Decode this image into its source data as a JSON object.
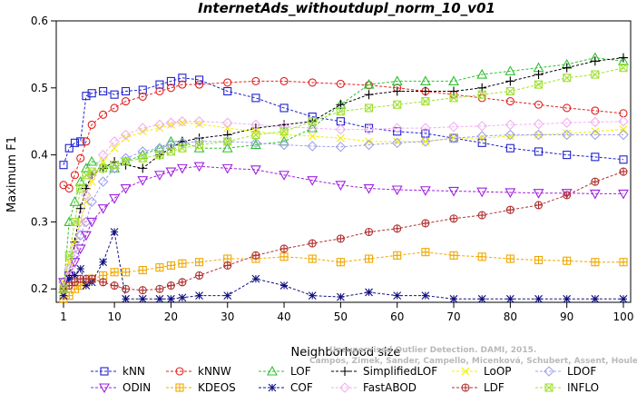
{
  "chart_data": {
    "type": "line",
    "title": "InternetAds_withoutdupl_norm_10_v01",
    "xlabel": "Neighborhood size",
    "ylabel": "Maximum F1",
    "xlim": [
      1,
      100
    ],
    "ylim": [
      0.18,
      0.6
    ],
    "xticks": [
      1,
      10,
      20,
      30,
      40,
      50,
      60,
      70,
      80,
      90,
      100
    ],
    "yticks": [
      0.2,
      0.3,
      0.4,
      0.5,
      0.6
    ],
    "grid": false,
    "legend_position": "bottom",
    "x": [
      1,
      2,
      3,
      4,
      5,
      6,
      8,
      10,
      12,
      15,
      18,
      20,
      22,
      25,
      30,
      35,
      40,
      45,
      50,
      55,
      60,
      65,
      70,
      75,
      80,
      85,
      90,
      95,
      100
    ],
    "series": [
      {
        "name": "kNN",
        "color": "#2020d0",
        "marker": "square",
        "values": [
          0.385,
          0.41,
          0.418,
          0.42,
          0.488,
          0.492,
          0.495,
          0.49,
          0.495,
          0.497,
          0.505,
          0.51,
          0.515,
          0.512,
          0.495,
          0.485,
          0.47,
          0.457,
          0.45,
          0.44,
          0.435,
          0.432,
          0.425,
          0.418,
          0.41,
          0.405,
          0.4,
          0.397,
          0.393
        ]
      },
      {
        "name": "kNNW",
        "color": "#e02020",
        "marker": "circle",
        "values": [
          0.355,
          0.35,
          0.37,
          0.395,
          0.42,
          0.445,
          0.46,
          0.47,
          0.48,
          0.487,
          0.495,
          0.5,
          0.505,
          0.505,
          0.508,
          0.51,
          0.51,
          0.508,
          0.506,
          0.504,
          0.5,
          0.495,
          0.49,
          0.485,
          0.48,
          0.475,
          0.47,
          0.466,
          0.462
        ]
      },
      {
        "name": "LOF",
        "color": "#30c030",
        "marker": "triangle",
        "values": [
          0.2,
          0.3,
          0.33,
          0.36,
          0.38,
          0.39,
          0.385,
          0.38,
          0.39,
          0.4,
          0.41,
          0.42,
          0.42,
          0.41,
          0.41,
          0.415,
          0.42,
          0.44,
          0.475,
          0.505,
          0.51,
          0.51,
          0.51,
          0.52,
          0.525,
          0.53,
          0.535,
          0.545,
          0.54
        ]
      },
      {
        "name": "SimplifiedLOF",
        "color": "#000000",
        "marker": "plus",
        "values": [
          0.2,
          0.22,
          0.27,
          0.32,
          0.35,
          0.37,
          0.38,
          0.39,
          0.385,
          0.38,
          0.4,
          0.41,
          0.42,
          0.425,
          0.43,
          0.44,
          0.445,
          0.45,
          0.475,
          0.49,
          0.495,
          0.495,
          0.495,
          0.5,
          0.51,
          0.52,
          0.53,
          0.54,
          0.545
        ]
      },
      {
        "name": "LoOP",
        "color": "#f0f000",
        "marker": "x",
        "values": [
          0.21,
          0.24,
          0.27,
          0.3,
          0.33,
          0.36,
          0.39,
          0.41,
          0.425,
          0.435,
          0.44,
          0.445,
          0.448,
          0.446,
          0.44,
          0.435,
          0.43,
          0.428,
          0.425,
          0.42,
          0.42,
          0.42,
          0.425,
          0.425,
          0.428,
          0.43,
          0.432,
          0.435,
          0.438
        ]
      },
      {
        "name": "LDOF",
        "color": "#a0a0f0",
        "marker": "diamond",
        "values": [
          0.21,
          0.23,
          0.25,
          0.28,
          0.3,
          0.33,
          0.36,
          0.38,
          0.395,
          0.405,
          0.41,
          0.415,
          0.418,
          0.42,
          0.42,
          0.418,
          0.415,
          0.413,
          0.412,
          0.415,
          0.418,
          0.42,
          0.425,
          0.428,
          0.43,
          0.43,
          0.43,
          0.43,
          0.43
        ]
      },
      {
        "name": "ODIN",
        "color": "#a020e0",
        "marker": "triangle-down",
        "values": [
          0.21,
          0.22,
          0.24,
          0.26,
          0.28,
          0.3,
          0.32,
          0.335,
          0.35,
          0.362,
          0.37,
          0.375,
          0.38,
          0.383,
          0.38,
          0.378,
          0.37,
          0.362,
          0.355,
          0.35,
          0.348,
          0.347,
          0.346,
          0.345,
          0.344,
          0.343,
          0.343,
          0.342,
          0.342
        ]
      },
      {
        "name": "KDEOS",
        "color": "#f0a800",
        "marker": "square-cross",
        "values": [
          0.185,
          0.19,
          0.2,
          0.205,
          0.21,
          0.215,
          0.22,
          0.225,
          0.225,
          0.228,
          0.232,
          0.235,
          0.238,
          0.24,
          0.245,
          0.245,
          0.248,
          0.245,
          0.24,
          0.245,
          0.25,
          0.255,
          0.25,
          0.248,
          0.245,
          0.243,
          0.242,
          0.24,
          0.24
        ]
      },
      {
        "name": "COF",
        "color": "#101080",
        "marker": "star",
        "values": [
          0.19,
          0.215,
          0.22,
          0.23,
          0.205,
          0.21,
          0.24,
          0.285,
          0.185,
          0.185,
          0.185,
          0.185,
          0.187,
          0.19,
          0.19,
          0.215,
          0.205,
          0.19,
          0.188,
          0.195,
          0.19,
          0.19,
          0.185,
          0.185,
          0.185,
          0.185,
          0.185,
          0.185,
          0.185
        ]
      },
      {
        "name": "FastABOD",
        "color": "#f0b0f0",
        "marker": "diamond",
        "values": [
          0.2,
          0.23,
          0.26,
          0.3,
          0.34,
          0.37,
          0.4,
          0.42,
          0.43,
          0.44,
          0.445,
          0.448,
          0.45,
          0.45,
          0.448,
          0.445,
          0.442,
          0.44,
          0.438,
          0.438,
          0.44,
          0.44,
          0.442,
          0.443,
          0.445,
          0.446,
          0.448,
          0.449,
          0.45
        ]
      },
      {
        "name": "LDF",
        "color": "#b03030",
        "marker": "circle-plus",
        "values": [
          0.2,
          0.205,
          0.21,
          0.215,
          0.215,
          0.215,
          0.21,
          0.205,
          0.2,
          0.198,
          0.2,
          0.205,
          0.21,
          0.22,
          0.235,
          0.25,
          0.26,
          0.268,
          0.275,
          0.285,
          0.29,
          0.298,
          0.305,
          0.31,
          0.318,
          0.325,
          0.34,
          0.36,
          0.375
        ]
      },
      {
        "name": "INFLO",
        "color": "#a0e030",
        "marker": "square-x",
        "values": [
          0.2,
          0.25,
          0.3,
          0.35,
          0.37,
          0.375,
          0.38,
          0.385,
          0.39,
          0.395,
          0.4,
          0.405,
          0.41,
          0.415,
          0.42,
          0.43,
          0.435,
          0.45,
          0.465,
          0.47,
          0.475,
          0.48,
          0.485,
          0.49,
          0.495,
          0.505,
          0.515,
          0.52,
          0.53
        ]
      }
    ]
  },
  "watermark": {
    "line1": "Unsupervised Outlier Detection. DAMI, 2015.",
    "line2": "Campos, Zimek, Sander, Campello, Micenková, Schubert, Assent, Houle"
  }
}
